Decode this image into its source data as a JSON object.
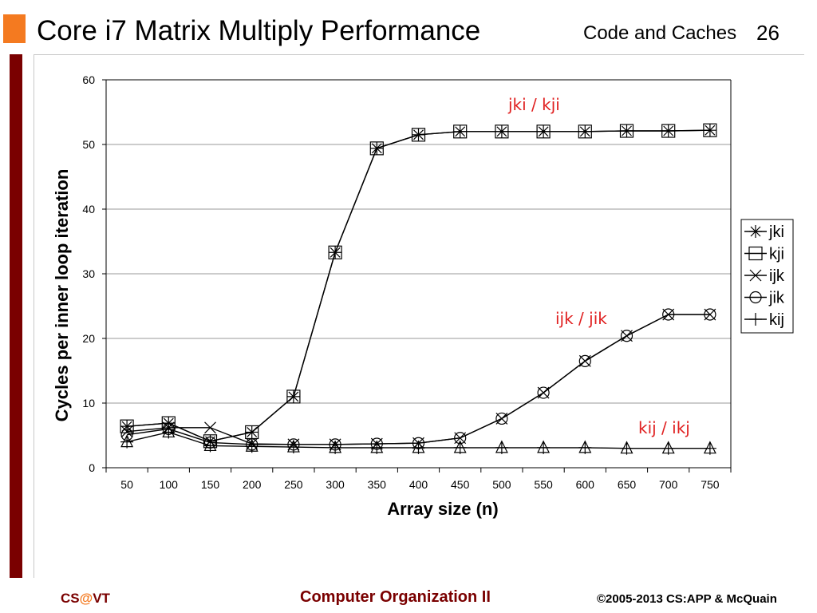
{
  "slide": {
    "title": "Core i7 Matrix Multiply Performance",
    "section": "Code and Caches",
    "page_number": "26",
    "accent_color": "#f47a20",
    "bar_color": "#7a0000"
  },
  "footer": {
    "left_prefix": "CS",
    "left_at": "@",
    "left_suffix": "VT",
    "center": "Computer Organization II",
    "right": "©2005-2013 CS:APP & McQuain",
    "left_color": "#7a0000",
    "at_color": "#f47a20",
    "center_color": "#7a0000"
  },
  "chart_data": {
    "type": "line",
    "title": "",
    "xlabel": "Array size (n)",
    "ylabel": "Cycles per inner loop iteration",
    "categories": [
      "50",
      "100",
      "150",
      "200",
      "250",
      "300",
      "350",
      "400",
      "450",
      "500",
      "550",
      "600",
      "650",
      "700",
      "750"
    ],
    "ylim": [
      0,
      60
    ],
    "yticks": [
      0,
      10,
      20,
      30,
      40,
      50,
      60
    ],
    "grid": true,
    "legend_position": "right",
    "series": [
      {
        "name": "jki",
        "marker": "asterisk",
        "values": [
          6.4,
          6.9,
          4.1,
          5.5,
          11.0,
          33.3,
          49.4,
          51.5,
          52.0,
          52.0,
          52.0,
          52.0,
          52.1,
          52.1,
          52.2
        ]
      },
      {
        "name": "kji",
        "marker": "square",
        "values": [
          6.4,
          6.9,
          4.1,
          5.5,
          11.0,
          33.3,
          49.4,
          51.5,
          52.0,
          52.0,
          52.0,
          52.0,
          52.1,
          52.1,
          52.2
        ]
      },
      {
        "name": "ijk",
        "marker": "x",
        "values": [
          5.6,
          6.2,
          6.2,
          3.7,
          3.6,
          3.6,
          3.7,
          3.8,
          4.6,
          7.6,
          11.6,
          16.5,
          20.4,
          23.7,
          23.7
        ]
      },
      {
        "name": "jik",
        "marker": "circle",
        "values": [
          5.1,
          6.0,
          3.9,
          3.6,
          3.6,
          3.6,
          3.7,
          3.8,
          4.6,
          7.6,
          11.6,
          16.5,
          20.4,
          23.7,
          23.7
        ]
      },
      {
        "name": "kij",
        "marker": "plus",
        "values": [
          4.0,
          5.5,
          3.4,
          3.3,
          3.2,
          3.1,
          3.1,
          3.1,
          3.1,
          3.1,
          3.1,
          3.1,
          3.0,
          3.0,
          3.0
        ]
      }
    ],
    "annotations": [
      {
        "text": "jki / kji",
        "color": "#e02020"
      },
      {
        "text": "ijk / jik",
        "color": "#e02020"
      },
      {
        "text": "kij / ikj",
        "color": "#e02020"
      }
    ]
  }
}
